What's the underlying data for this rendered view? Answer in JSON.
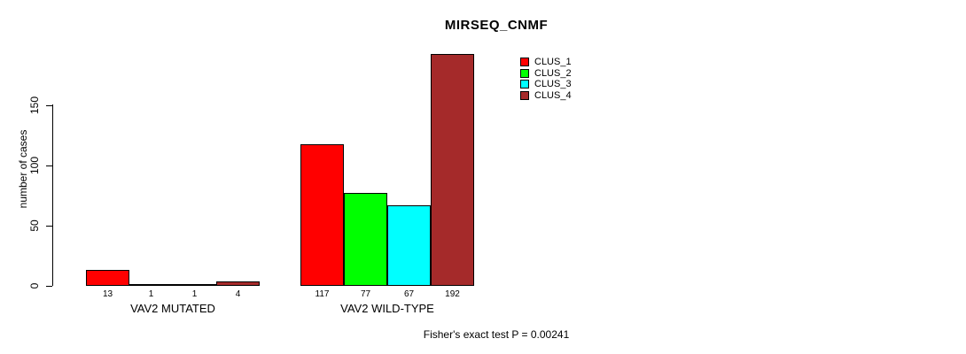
{
  "chart_data": {
    "type": "bar",
    "title": "MIRSEQ_CNMF",
    "ylabel": "number of cases",
    "xlabel": "",
    "yticks": [
      0,
      50,
      100,
      150
    ],
    "ylim": [
      0,
      195
    ],
    "grid": false,
    "legend_position": "top-right",
    "categories": [
      "VAV2 MUTATED",
      "VAV2 WILD-TYPE"
    ],
    "series": [
      {
        "name": "CLUS_1",
        "color": "#FF0000",
        "values": [
          13,
          117
        ]
      },
      {
        "name": "CLUS_2",
        "color": "#00FF00",
        "values": [
          1,
          77
        ]
      },
      {
        "name": "CLUS_3",
        "color": "#00FFFF",
        "values": [
          1,
          67
        ]
      },
      {
        "name": "CLUS_4",
        "color": "#A52A2A",
        "values": [
          4,
          192
        ]
      }
    ],
    "bar_value_labels": [
      [
        "13",
        "1",
        "1",
        "4"
      ],
      [
        "117",
        "77",
        "67",
        "192"
      ]
    ],
    "annotation": "Fisher's exact test P = 0.00241"
  },
  "colors": {
    "axis": "#000000",
    "text": "#000000",
    "background": "#FFFFFF"
  }
}
